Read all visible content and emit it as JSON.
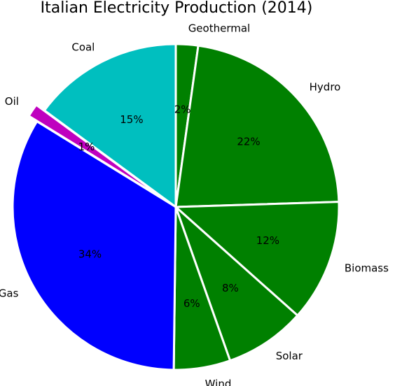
{
  "chart_data": {
    "type": "pie",
    "title": "Italian Electricity Production (2014)",
    "start_angle_deg": 90,
    "direction": "clockwise",
    "slices": [
      {
        "label": "Geothermal",
        "value": 2.2,
        "pct_label": "2%",
        "color": "#008000",
        "explode": 0
      },
      {
        "label": "Hydro",
        "value": 22.3,
        "pct_label": "22%",
        "color": "#008000",
        "explode": 0
      },
      {
        "label": "Biomass",
        "value": 12.1,
        "pct_label": "12%",
        "color": "#008000",
        "explode": 0
      },
      {
        "label": "Solar",
        "value": 8.0,
        "pct_label": "8%",
        "color": "#008000",
        "explode": 0
      },
      {
        "label": "Wind",
        "value": 5.6,
        "pct_label": "6%",
        "color": "#008000",
        "explode": 0
      },
      {
        "label": "Gas",
        "value": 33.6,
        "pct_label": "34%",
        "color": "#0000ff",
        "explode": 0
      },
      {
        "label": "Oil",
        "value": 1.3,
        "pct_label": "1%",
        "color": "#bf00bf",
        "explode": 1
      },
      {
        "label": "Coal",
        "value": 14.9,
        "pct_label": "15%",
        "color": "#00bfbf",
        "explode": 0
      }
    ]
  }
}
